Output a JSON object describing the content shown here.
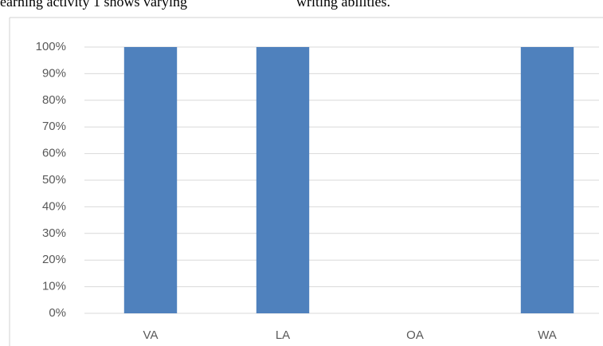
{
  "chart_data": {
    "type": "bar",
    "annotations": [
      "earning activity 1 shows varying",
      "writing abilities."
    ],
    "categories": [
      "VA",
      "LA",
      "OA",
      "WA"
    ],
    "values": [
      100,
      100,
      0,
      100
    ],
    "color": "#4f81bd",
    "ylim": [
      0,
      100
    ],
    "yticks": [
      {
        "value": 0,
        "label": "0%"
      },
      {
        "value": 10,
        "label": "10%"
      },
      {
        "value": 20,
        "label": "20%"
      },
      {
        "value": 30,
        "label": "30%"
      },
      {
        "value": 40,
        "label": "40%"
      },
      {
        "value": 50,
        "label": "50%"
      },
      {
        "value": 60,
        "label": "60%"
      },
      {
        "value": 70,
        "label": "70%"
      },
      {
        "value": 80,
        "label": "80%"
      },
      {
        "value": 90,
        "label": "90%"
      },
      {
        "value": 100,
        "label": "100%"
      }
    ],
    "grid": true
  }
}
